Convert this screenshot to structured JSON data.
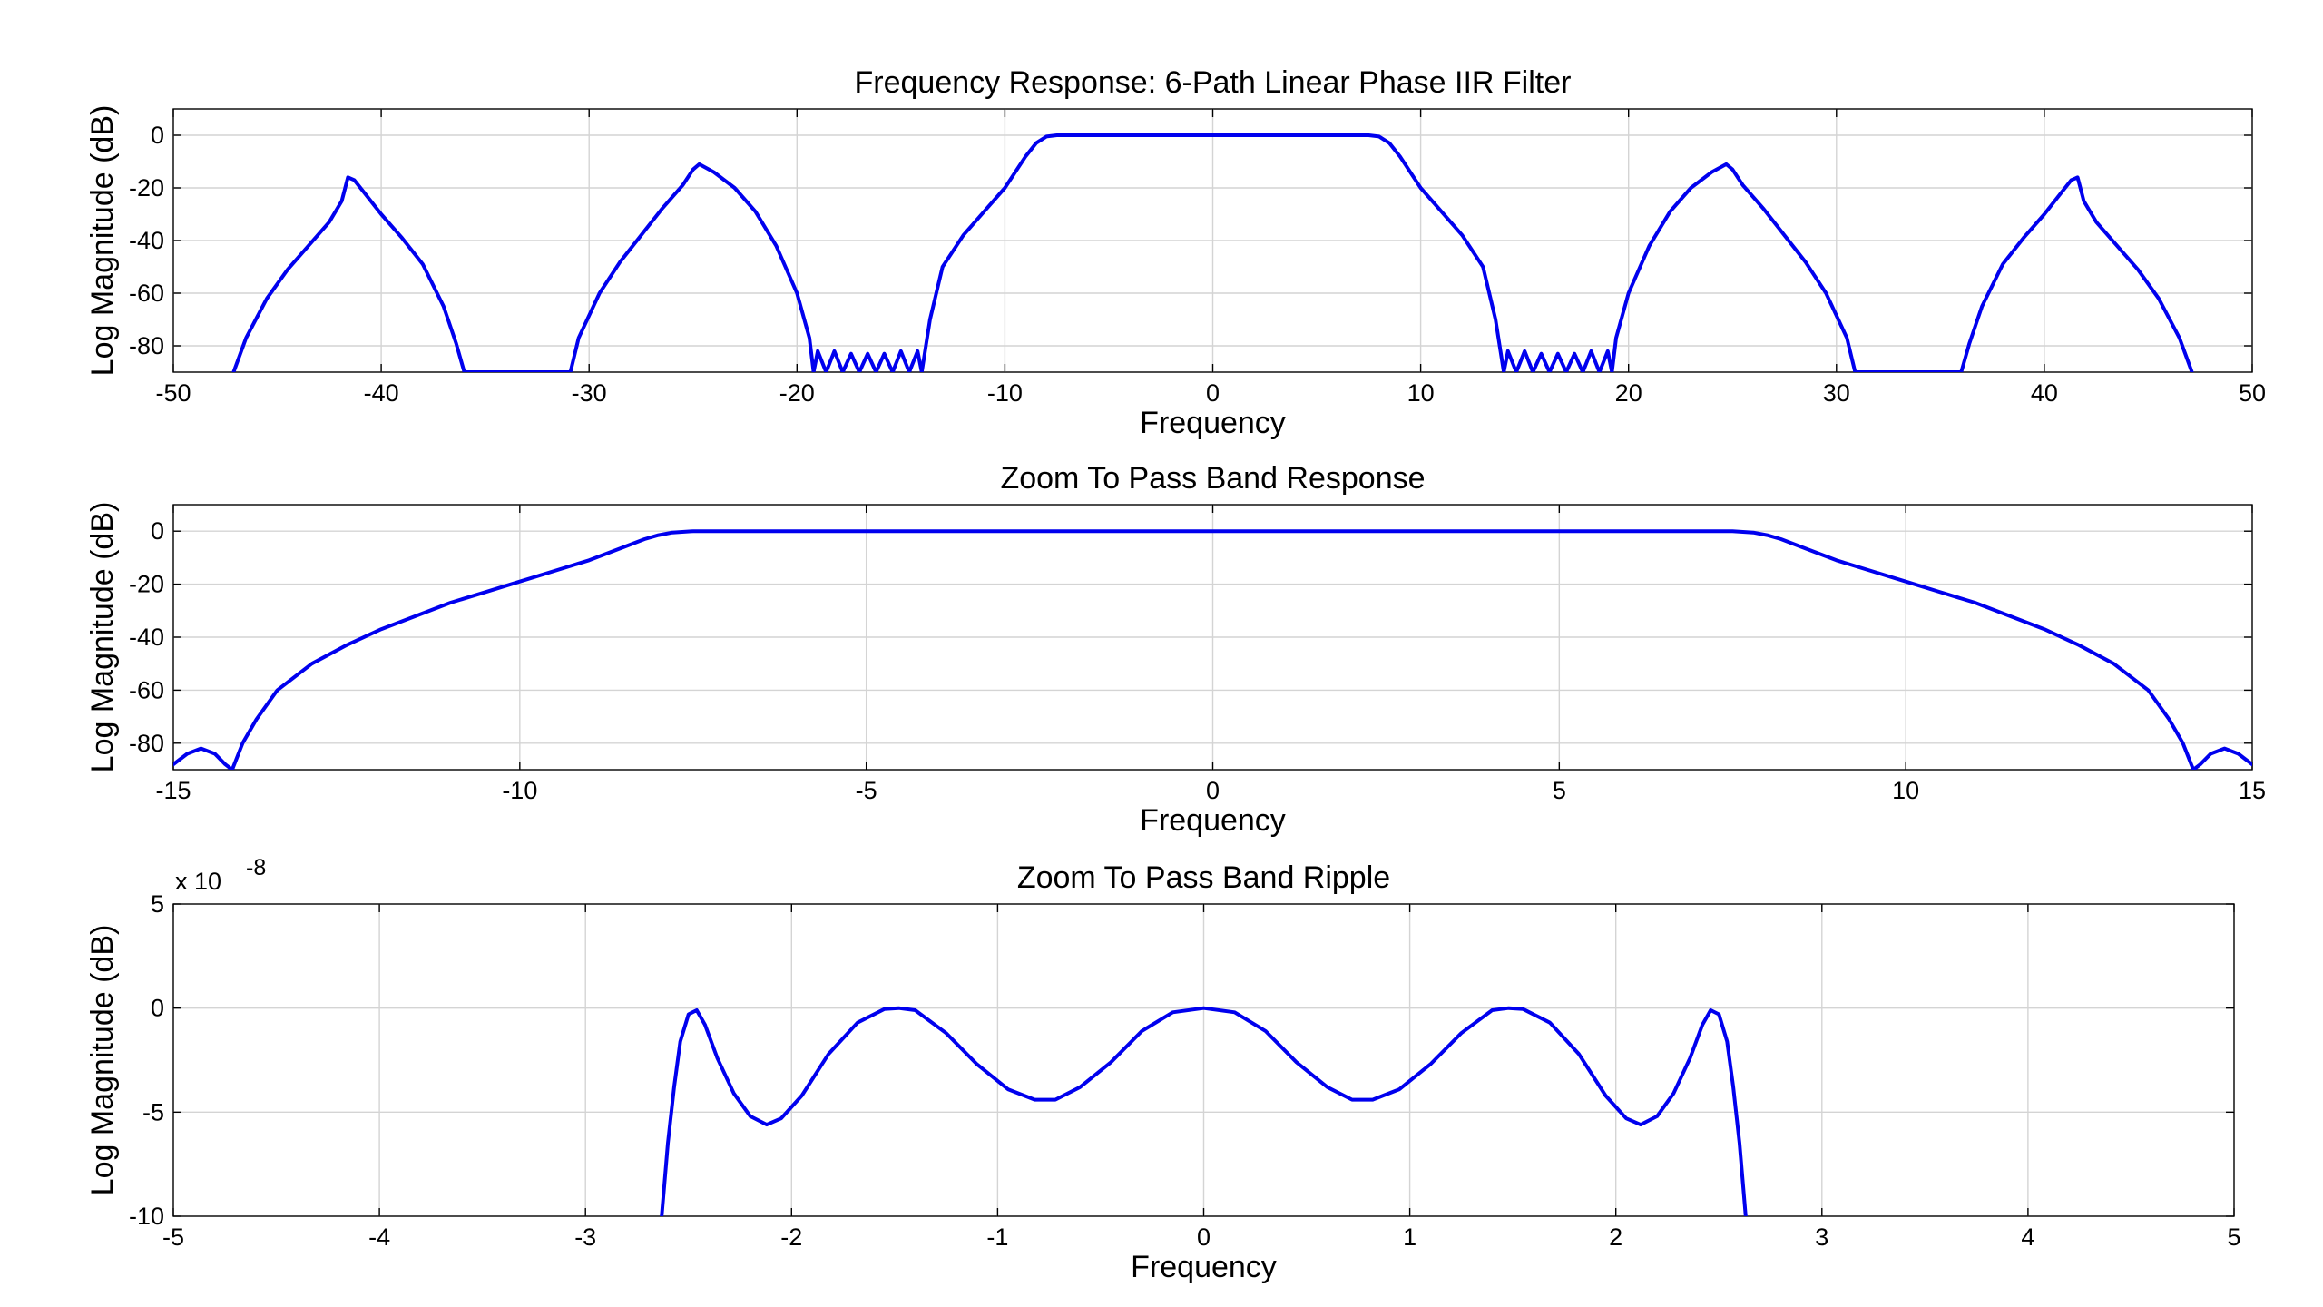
{
  "chart_data": [
    {
      "type": "line",
      "title": "Frequency Response: 6-Path Linear Phase IIR Filter",
      "xlabel": "Frequency",
      "ylabel": "Log Magnitude (dB)",
      "xlim": [
        -50,
        50
      ],
      "ylim": [
        -90,
        10
      ],
      "xticks": [
        -50,
        -40,
        -30,
        -20,
        -10,
        0,
        10,
        20,
        30,
        40,
        50
      ],
      "yticks": [
        -80,
        -60,
        -40,
        -20,
        0
      ],
      "grid": true,
      "line_color": "#0000ee",
      "series": [
        {
          "x": [
            -47.1,
            -46.5,
            -45.5,
            -44.5,
            -43.5,
            -42.5,
            -41.9,
            -41.6,
            -41.3,
            -40.8,
            -40,
            -39,
            -38,
            -37,
            -36.4,
            -36,
            -30.9,
            -30.5,
            -29.5,
            -28.5,
            -27.5,
            -26.5,
            -25.5,
            -25,
            -24.7,
            -24,
            -23,
            -22,
            -21,
            -20,
            -19.4,
            -19.2,
            -19,
            -18.6,
            -18.2,
            -17.8,
            -17.4,
            -17,
            -16.6,
            -16.2,
            -15.8,
            -15.4,
            -15,
            -14.6,
            -14.2,
            -14,
            -13.6,
            -13,
            -12,
            -11,
            -10,
            -9,
            -8.5,
            -8,
            -7.5,
            -7,
            7,
            7.5,
            8,
            8.5,
            9,
            10,
            11,
            12,
            13,
            13.6,
            14,
            14.2,
            14.6,
            15,
            15.4,
            15.8,
            16.2,
            16.6,
            17,
            17.4,
            17.8,
            18.2,
            18.6,
            19,
            19.2,
            19.4,
            20,
            21,
            22,
            23,
            24,
            24.7,
            25,
            25.5,
            26.5,
            27.5,
            28.5,
            29.5,
            30.5,
            30.9,
            36,
            36.4,
            37,
            38,
            39,
            40,
            40.8,
            41.3,
            41.6,
            41.9,
            42.5,
            43.5,
            44.5,
            45.5,
            46.5,
            47.1
          ],
          "y": [
            -90,
            -77,
            -62,
            -51,
            -42,
            -33,
            -25,
            -16,
            -17,
            -22,
            -30,
            -39,
            -49,
            -65,
            -79,
            -90,
            -90,
            -77,
            -60,
            -48,
            -38,
            -28,
            -19,
            -13,
            -11,
            -14,
            -20,
            -29,
            -42,
            -60,
            -77,
            -90,
            -82,
            -90,
            -82,
            -90,
            -83,
            -90,
            -83,
            -90,
            -83,
            -90,
            -82,
            -90,
            -82,
            -90,
            -70,
            -50,
            -38,
            -29,
            -20,
            -8,
            -3,
            -0.5,
            0,
            0,
            0,
            0,
            -0.5,
            -3,
            -8,
            -20,
            -29,
            -38,
            -50,
            -70,
            -90,
            -82,
            -90,
            -82,
            -90,
            -83,
            -90,
            -83,
            -90,
            -83,
            -90,
            -82,
            -90,
            -82,
            -90,
            -77,
            -60,
            -42,
            -29,
            -20,
            -14,
            -11,
            -13,
            -19,
            -28,
            -38,
            -48,
            -60,
            -77,
            -90,
            -90,
            -79,
            -65,
            -49,
            -39,
            -30,
            -22,
            -17,
            -16,
            -25,
            -33,
            -42,
            -51,
            -62,
            -77,
            -90
          ]
        }
      ]
    },
    {
      "type": "line",
      "title": "Zoom To Pass Band Response",
      "xlabel": "Frequency",
      "ylabel": "Log Magnitude (dB)",
      "xlim": [
        -15,
        15
      ],
      "ylim": [
        -90,
        10
      ],
      "xticks": [
        -15,
        -10,
        -5,
        0,
        5,
        10,
        15
      ],
      "yticks": [
        -80,
        -60,
        -40,
        -20,
        0
      ],
      "grid": true,
      "line_color": "#0000ee",
      "series": [
        {
          "x": [
            -15,
            -14.8,
            -14.6,
            -14.4,
            -14.25,
            -14.15,
            -14,
            -13.8,
            -13.5,
            -13,
            -12.5,
            -12,
            -11.5,
            -11,
            -10.5,
            -10,
            -9.5,
            -9,
            -8.5,
            -8.2,
            -8,
            -7.8,
            -7.5,
            7.5,
            7.8,
            8,
            8.2,
            8.5,
            9,
            9.5,
            10,
            10.5,
            11,
            11.5,
            12,
            12.5,
            13,
            13.5,
            13.8,
            14,
            14.15,
            14.25,
            14.4,
            14.6,
            14.8,
            15
          ],
          "y": [
            -88,
            -84,
            -82,
            -84,
            -88,
            -90,
            -80,
            -71,
            -60,
            -50,
            -43,
            -37,
            -32,
            -27,
            -23,
            -19,
            -15,
            -11,
            -6,
            -3,
            -1.5,
            -0.5,
            0,
            0,
            -0.5,
            -1.5,
            -3,
            -6,
            -11,
            -15,
            -19,
            -23,
            -27,
            -32,
            -37,
            -43,
            -50,
            -60,
            -71,
            -80,
            -90,
            -88,
            -84,
            -82,
            -84,
            -88
          ]
        }
      ]
    },
    {
      "type": "line",
      "title": "Zoom To Pass Band Ripple",
      "xlabel": "Frequency",
      "ylabel": "Log Magnitude (dB)",
      "y_multiplier": "x 10",
      "y_exponent": "-8",
      "xlim": [
        -5,
        5
      ],
      "ylim": [
        -10,
        5
      ],
      "xticks": [
        -5,
        -4,
        -3,
        -2,
        -1,
        0,
        1,
        2,
        3,
        4,
        5
      ],
      "yticks": [
        -10,
        -5,
        0,
        5
      ],
      "grid": true,
      "line_color": "#0000ee",
      "series": [
        {
          "x": [
            -2.63,
            -2.6,
            -2.57,
            -2.54,
            -2.5,
            -2.46,
            -2.42,
            -2.36,
            -2.28,
            -2.2,
            -2.12,
            -2.05,
            -1.95,
            -1.82,
            -1.68,
            -1.55,
            -1.48,
            -1.4,
            -1.25,
            -1.1,
            -0.95,
            -0.82,
            -0.72,
            -0.6,
            -0.45,
            -0.3,
            -0.15,
            0,
            0.15,
            0.3,
            0.45,
            0.6,
            0.72,
            0.82,
            0.95,
            1.1,
            1.25,
            1.4,
            1.48,
            1.55,
            1.68,
            1.82,
            1.95,
            2.05,
            2.12,
            2.2,
            2.28,
            2.36,
            2.42,
            2.46,
            2.5,
            2.54,
            2.57,
            2.6,
            2.63
          ],
          "y": [
            -10,
            -6.5,
            -3.8,
            -1.6,
            -0.3,
            -0.1,
            -0.8,
            -2.4,
            -4.1,
            -5.2,
            -5.6,
            -5.3,
            -4.2,
            -2.2,
            -0.7,
            -0.05,
            0,
            -0.1,
            -1.2,
            -2.7,
            -3.9,
            -4.4,
            -4.4,
            -3.8,
            -2.6,
            -1.1,
            -0.2,
            0,
            -0.2,
            -1.1,
            -2.6,
            -3.8,
            -4.4,
            -4.4,
            -3.9,
            -2.7,
            -1.2,
            -0.1,
            0,
            -0.05,
            -0.7,
            -2.2,
            -4.2,
            -5.3,
            -5.6,
            -5.2,
            -4.1,
            -2.4,
            -0.8,
            -0.1,
            -0.3,
            -1.6,
            -3.8,
            -6.5,
            -10
          ]
        }
      ]
    }
  ]
}
